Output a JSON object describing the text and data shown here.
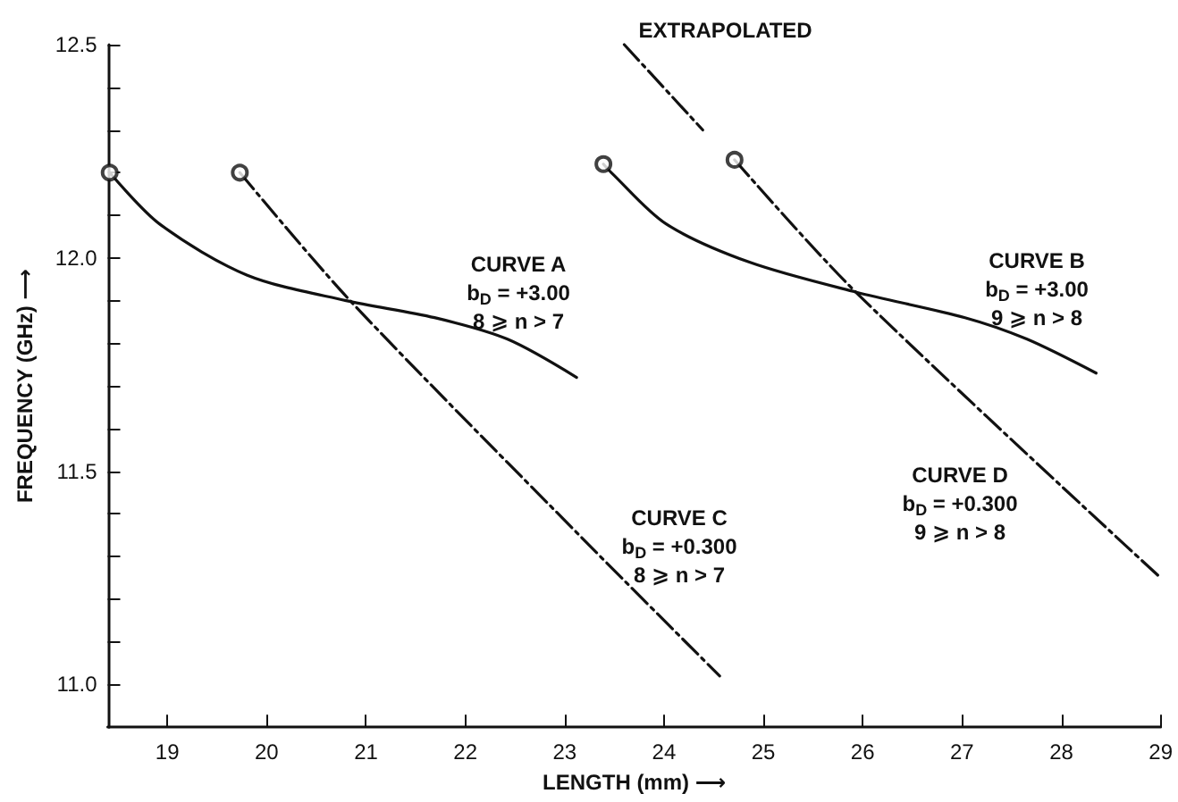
{
  "chart_data": {
    "type": "line",
    "xlabel": "LENGTH (mm) ⟶",
    "ylabel": "FREQUENCY (GHz) ⟶",
    "xlim": [
      18.4,
      29
    ],
    "xticks": [
      19,
      20,
      21,
      22,
      23,
      24,
      25,
      26,
      27,
      28,
      29
    ],
    "ylim": [
      10.9,
      12.5
    ],
    "yticks": [
      {
        "value": 11.0,
        "label": "11.0"
      },
      {
        "value": 11.1,
        "label": null
      },
      {
        "value": 11.2,
        "label": null
      },
      {
        "value": 11.3,
        "label": null
      },
      {
        "value": 11.4,
        "label": null
      },
      {
        "value": 11.5,
        "label": "11.5"
      },
      {
        "value": 11.6,
        "label": null
      },
      {
        "value": 11.7,
        "label": null
      },
      {
        "value": 11.8,
        "label": null
      },
      {
        "value": 11.9,
        "label": null
      },
      {
        "value": 12.0,
        "label": "12.0"
      },
      {
        "value": 12.1,
        "label": null
      },
      {
        "value": 12.2,
        "label": null
      },
      {
        "value": 12.3,
        "label": null
      },
      {
        "value": 12.4,
        "label": null
      },
      {
        "value": 12.5,
        "label": "12.5"
      }
    ],
    "grid": false,
    "series": [
      {
        "color": "#111111",
        "line_style": "solid",
        "x": [
          18.42,
          18.92,
          19.8,
          20.8,
          21.69,
          22.42,
          23.12
        ],
        "values": [
          12.2,
          12.08,
          11.96,
          11.9,
          11.86,
          11.81,
          11.72
        ]
      },
      {
        "color": "#111111",
        "line_style": "solid",
        "x": [
          23.39,
          23.47,
          24.02,
          24.86,
          25.93,
          27.03,
          27.65,
          28.35
        ],
        "values": [
          12.22,
          12.2,
          12.08,
          11.99,
          11.92,
          11.86,
          11.81,
          11.73
        ]
      },
      {
        "color": "#111111",
        "line_style": "dashed",
        "x": [
          19.73,
          20.84,
          23.19,
          24.56
        ],
        "values": [
          12.2,
          11.9,
          11.34,
          11.02
        ]
      },
      {
        "color": "#111111",
        "line_style": "dashed",
        "x": [
          24.71,
          25.93,
          29.0
        ],
        "values": [
          12.23,
          11.92,
          11.25
        ]
      },
      {
        "color": "#111111",
        "line_style": "dashed",
        "x": [
          23.6,
          24.39
        ],
        "values": [
          12.5,
          12.3
        ]
      },
      {
        "type": "scatter",
        "marker": "circle",
        "color": "#111111",
        "x": [
          18.42,
          19.73,
          23.39,
          24.71
        ],
        "values": [
          12.2,
          12.2,
          12.22,
          12.23
        ]
      }
    ],
    "annotations": [
      {
        "text": "EXTRAPOLATED",
        "x": 23.6,
        "y": 12.5
      },
      "CURVE A\nb$_{D}$ = +3.00\n8 ⩾ n > 7",
      "CURVE B\nb$_{D}$ = +3.00\n9 ⩾ n > 8",
      "CURVE C\nb$_{D}$ = +0.300\n8 ⩾ n > 7",
      "CURVE D\nb$_{D}$ = +0.300\n9 ⩾ n > 8"
    ]
  }
}
